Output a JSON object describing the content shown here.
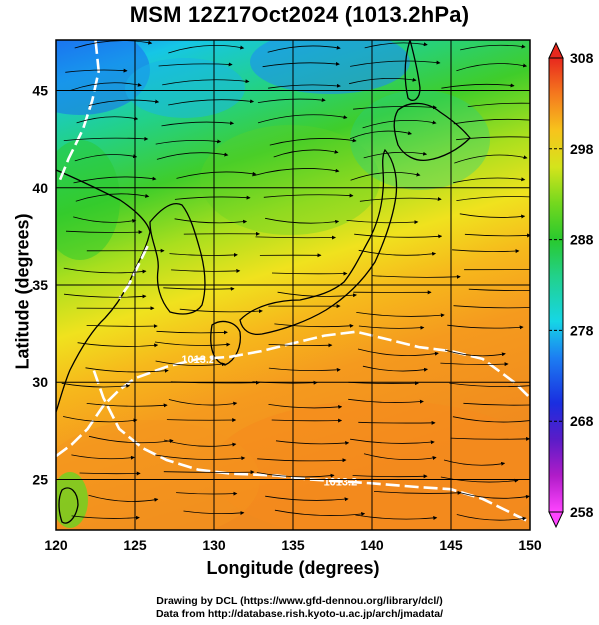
{
  "title": "MSM 12Z17Oct2024 (1013.2hPa)",
  "xlabel": "Longitude (degrees)",
  "ylabel": "Latitude  (degrees)",
  "credits": [
    "Drawing by DCL (https://www.gfd-dennou.org/library/dcl/)",
    "Data from http://database.rish.kyoto-u.ac.jp/arch/jmadata/"
  ],
  "chart_data": {
    "type": "heatmap",
    "title": "MSM 12Z17Oct2024 (1013.2hPa)",
    "xlabel": "Longitude (degrees)",
    "ylabel": "Latitude  (degrees)",
    "x_ticks": [
      "120",
      "125",
      "130",
      "135",
      "140",
      "145",
      "150"
    ],
    "y_ticks": [
      "25",
      "30",
      "35",
      "40",
      "45"
    ],
    "xlim": [
      120,
      150
    ],
    "ylim": [
      22.4,
      47.6
    ],
    "grid": true,
    "colorbar": {
      "ticks": [
        "258",
        "268",
        "278",
        "288",
        "298",
        "308"
      ],
      "range": [
        258,
        308
      ],
      "colors": [
        "#ff44ff",
        "#cc22cc",
        "#6a1cc0",
        "#1a2ee0",
        "#1c7ef2",
        "#16d6e6",
        "#22d18a",
        "#29c92e",
        "#74d81e",
        "#c4e31c",
        "#f2e41e",
        "#f7b41c",
        "#f58a1e",
        "#f0621e",
        "#e8281e"
      ]
    },
    "contour_label": "1013.2",
    "contours": [
      {
        "label": "1013.2",
        "points": [
          [
            120,
            26.2
          ],
          [
            121,
            26.8
          ],
          [
            122,
            27.6
          ],
          [
            123,
            28.8
          ],
          [
            124,
            29.6
          ],
          [
            125,
            30.2
          ],
          [
            127,
            30.8
          ],
          [
            129,
            31.2
          ],
          [
            131,
            31.3
          ],
          [
            133,
            31.6
          ],
          [
            135,
            32.0
          ],
          [
            137,
            32.4
          ],
          [
            139,
            32.6
          ],
          [
            141,
            32.2
          ],
          [
            143,
            31.8
          ],
          [
            145,
            31.6
          ],
          [
            147,
            31.2
          ],
          [
            149,
            30.0
          ],
          [
            150,
            29.2
          ]
        ]
      },
      {
        "label": "1013.2",
        "points": [
          [
            122.4,
            30.6
          ],
          [
            123,
            29.2
          ],
          [
            124,
            27.6
          ],
          [
            125.5,
            26.6
          ],
          [
            127,
            26.0
          ],
          [
            129,
            25.5
          ],
          [
            131,
            25.3
          ],
          [
            134,
            25.2
          ],
          [
            136,
            25.0
          ],
          [
            138,
            24.9
          ],
          [
            140,
            24.8
          ],
          [
            143,
            24.6
          ],
          [
            145,
            24.5
          ],
          [
            147,
            24.0
          ],
          [
            149,
            23.2
          ],
          [
            150,
            22.8
          ]
        ]
      },
      {
        "label": "1013.2",
        "points": [
          [
            122.5,
            47.6
          ],
          [
            122.7,
            46.0
          ],
          [
            122.3,
            44.5
          ],
          [
            121.7,
            43.0
          ],
          [
            120.8,
            41.5
          ],
          [
            120.2,
            40.3
          ]
        ]
      },
      {
        "label": "1013.2",
        "points": [
          [
            125.8,
            37.0
          ],
          [
            125.2,
            36.0
          ],
          [
            124.6,
            35.0
          ],
          [
            124.0,
            34.3
          ]
        ]
      }
    ]
  }
}
